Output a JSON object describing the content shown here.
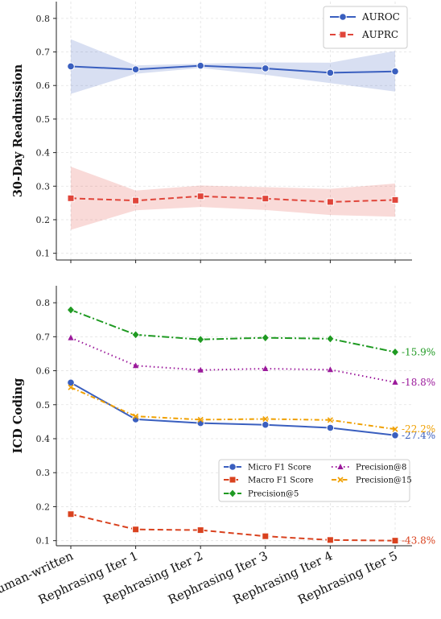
{
  "chart_data": [
    {
      "type": "line",
      "ylabel": "30-Day Readmission",
      "ylim": [
        0.08,
        0.85
      ],
      "yticks": [
        "0.1",
        "0.2",
        "0.3",
        "0.4",
        "0.5",
        "0.6",
        "0.7",
        "0.8"
      ],
      "categories": [
        "Human-written",
        "Rephrasing Iter 1",
        "Rephrasing Iter 2",
        "Rephrasing Iter 3",
        "Rephrasing Iter 4",
        "Rephrasing Iter 5"
      ],
      "grid": true,
      "legend_position": "top-right",
      "series": [
        {
          "name": "AUROC",
          "color": "#3a5fbf",
          "marker": "circle",
          "dash": "solid",
          "values": [
            0.657,
            0.648,
            0.659,
            0.651,
            0.638,
            0.642
          ],
          "band_upper": [
            0.738,
            0.66,
            0.665,
            0.669,
            0.668,
            0.703
          ],
          "band_lower": [
            0.575,
            0.635,
            0.652,
            0.632,
            0.607,
            0.582
          ]
        },
        {
          "name": "AUPRC",
          "color": "#e0453a",
          "marker": "square",
          "dash": "dashed",
          "values": [
            0.264,
            0.257,
            0.27,
            0.263,
            0.253,
            0.259
          ],
          "band_upper": [
            0.358,
            0.287,
            0.302,
            0.297,
            0.292,
            0.308
          ],
          "band_lower": [
            0.17,
            0.228,
            0.238,
            0.229,
            0.214,
            0.209
          ]
        }
      ]
    },
    {
      "type": "line",
      "ylabel": "ICD Coding",
      "ylim": [
        0.085,
        0.85
      ],
      "yticks": [
        "0.1",
        "0.2",
        "0.3",
        "0.4",
        "0.5",
        "0.6",
        "0.7",
        "0.8"
      ],
      "categories": [
        "Human-written",
        "Rephrasing Iter 1",
        "Rephrasing Iter 2",
        "Rephrasing Iter 3",
        "Rephrasing Iter 4",
        "Rephrasing Iter 5"
      ],
      "grid": true,
      "legend_position": "lower-right",
      "series": [
        {
          "name": "Micro F1 Score",
          "color": "#3a5fbf",
          "marker": "circle",
          "dash": "solid",
          "values": [
            0.565,
            0.457,
            0.446,
            0.441,
            0.432,
            0.41
          ],
          "change_label": "-27.4%"
        },
        {
          "name": "Macro F1 Score",
          "color": "#d9421f",
          "marker": "square",
          "dash": "dashed",
          "values": [
            0.178,
            0.133,
            0.131,
            0.113,
            0.102,
            0.1
          ],
          "change_label": "-43.8%"
        },
        {
          "name": "Precision@5",
          "color": "#1f9a22",
          "marker": "diamond",
          "dash": "dashdot",
          "values": [
            0.779,
            0.706,
            0.692,
            0.697,
            0.694,
            0.655
          ],
          "change_label": "-15.9%"
        },
        {
          "name": "Precision@8",
          "color": "#9b199b",
          "marker": "triangle",
          "dash": "dotted",
          "values": [
            0.697,
            0.615,
            0.602,
            0.606,
            0.603,
            0.566
          ],
          "change_label": "-18.8%"
        },
        {
          "name": "Precision@15",
          "color": "#f0a000",
          "marker": "x",
          "dash": "dashdot2",
          "values": [
            0.551,
            0.466,
            0.456,
            0.458,
            0.455,
            0.428
          ],
          "change_label": "-22.2%"
        }
      ]
    }
  ]
}
